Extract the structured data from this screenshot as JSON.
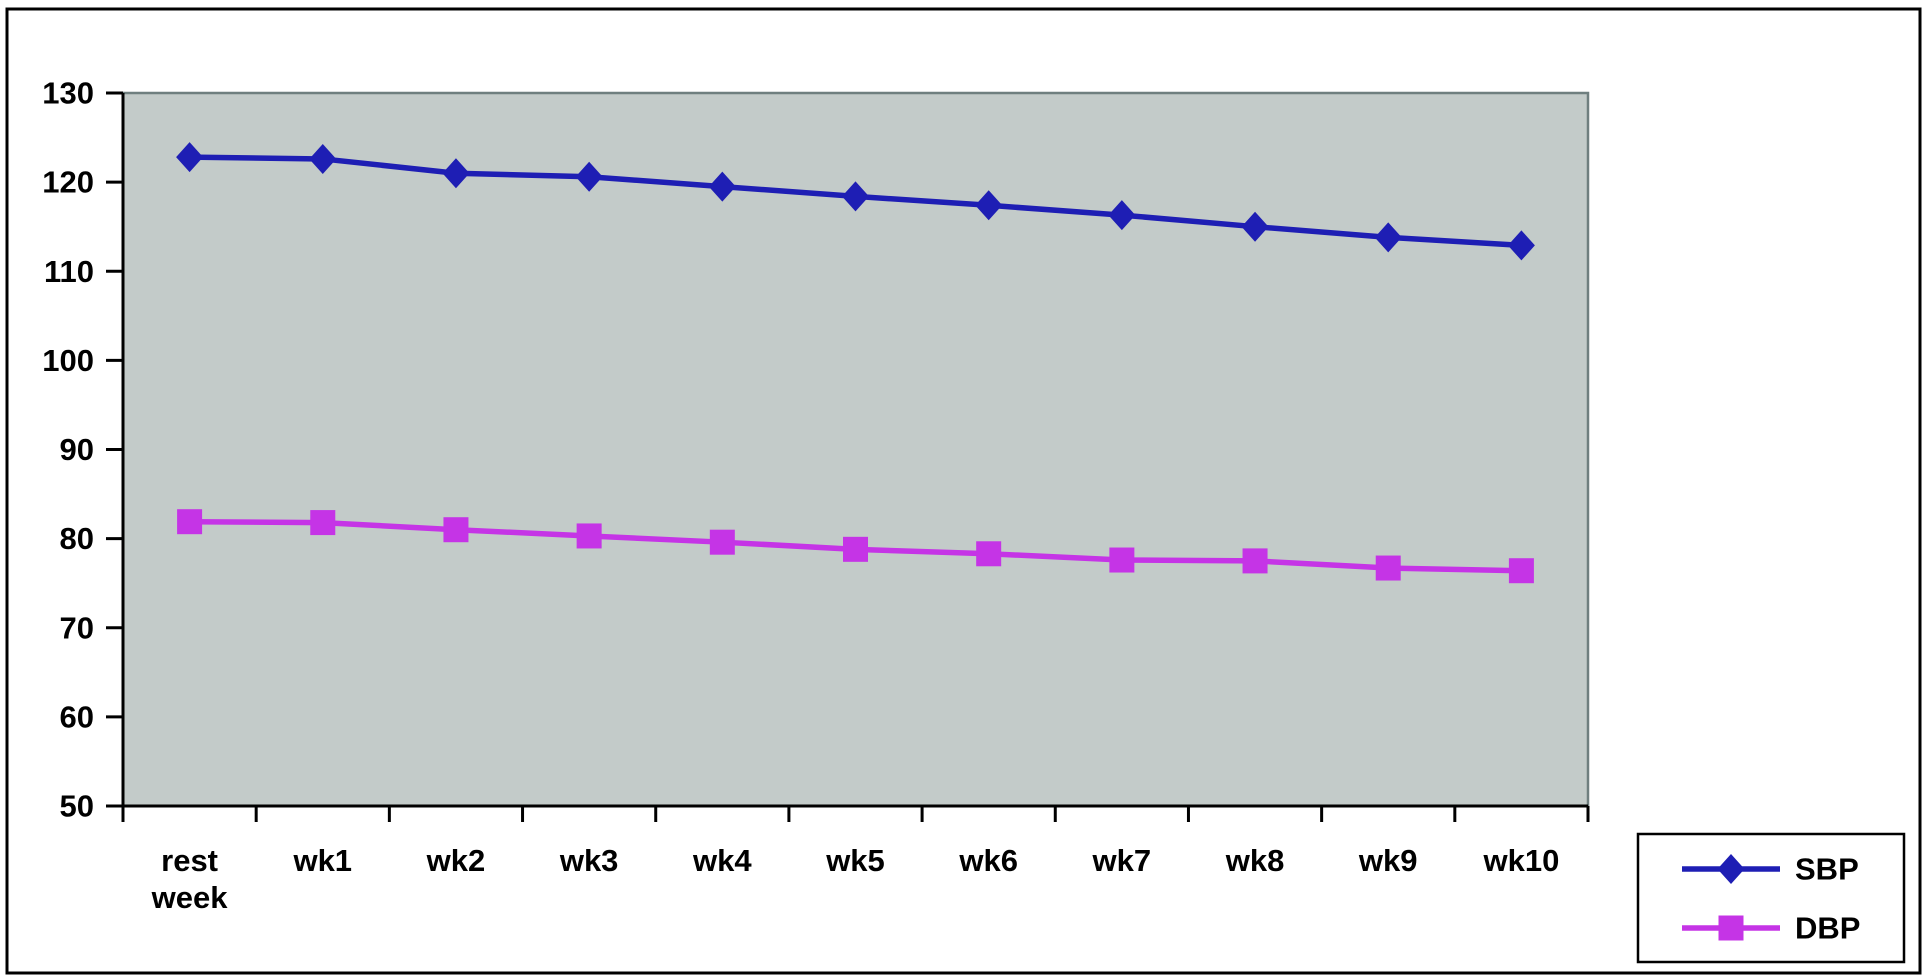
{
  "figure": {
    "background": "#ffffff",
    "border_color": "#000000"
  },
  "chart_data": {
    "type": "line",
    "title": "",
    "xlabel": "",
    "ylabel": "",
    "grid": false,
    "plot_background": "#C3CBC9",
    "plot_edge_color": "#6F7F7F",
    "axis_color": "#000000",
    "categories": [
      "rest week",
      "wk1",
      "wk2",
      "wk3",
      "wk4",
      "wk5",
      "wk6",
      "wk7",
      "wk8",
      "wk9",
      "wk10"
    ],
    "series": [
      {
        "name": "SBP",
        "color": "#1E1EB4",
        "marker": "diamond",
        "values": [
          122.8,
          122.6,
          121.0,
          120.6,
          119.5,
          118.4,
          117.4,
          116.3,
          115.0,
          113.8,
          112.9
        ]
      },
      {
        "name": "DBP",
        "color": "#C534E6",
        "marker": "square",
        "values": [
          81.9,
          81.8,
          81.0,
          80.3,
          79.6,
          78.8,
          78.3,
          77.6,
          77.5,
          76.7,
          76.4
        ]
      }
    ],
    "ylim": [
      50,
      130
    ],
    "yticks": [
      50,
      60,
      70,
      80,
      90,
      100,
      110,
      120,
      130
    ],
    "legend": {
      "position": "bottom-right",
      "entries": [
        "SBP",
        "DBP"
      ]
    }
  }
}
